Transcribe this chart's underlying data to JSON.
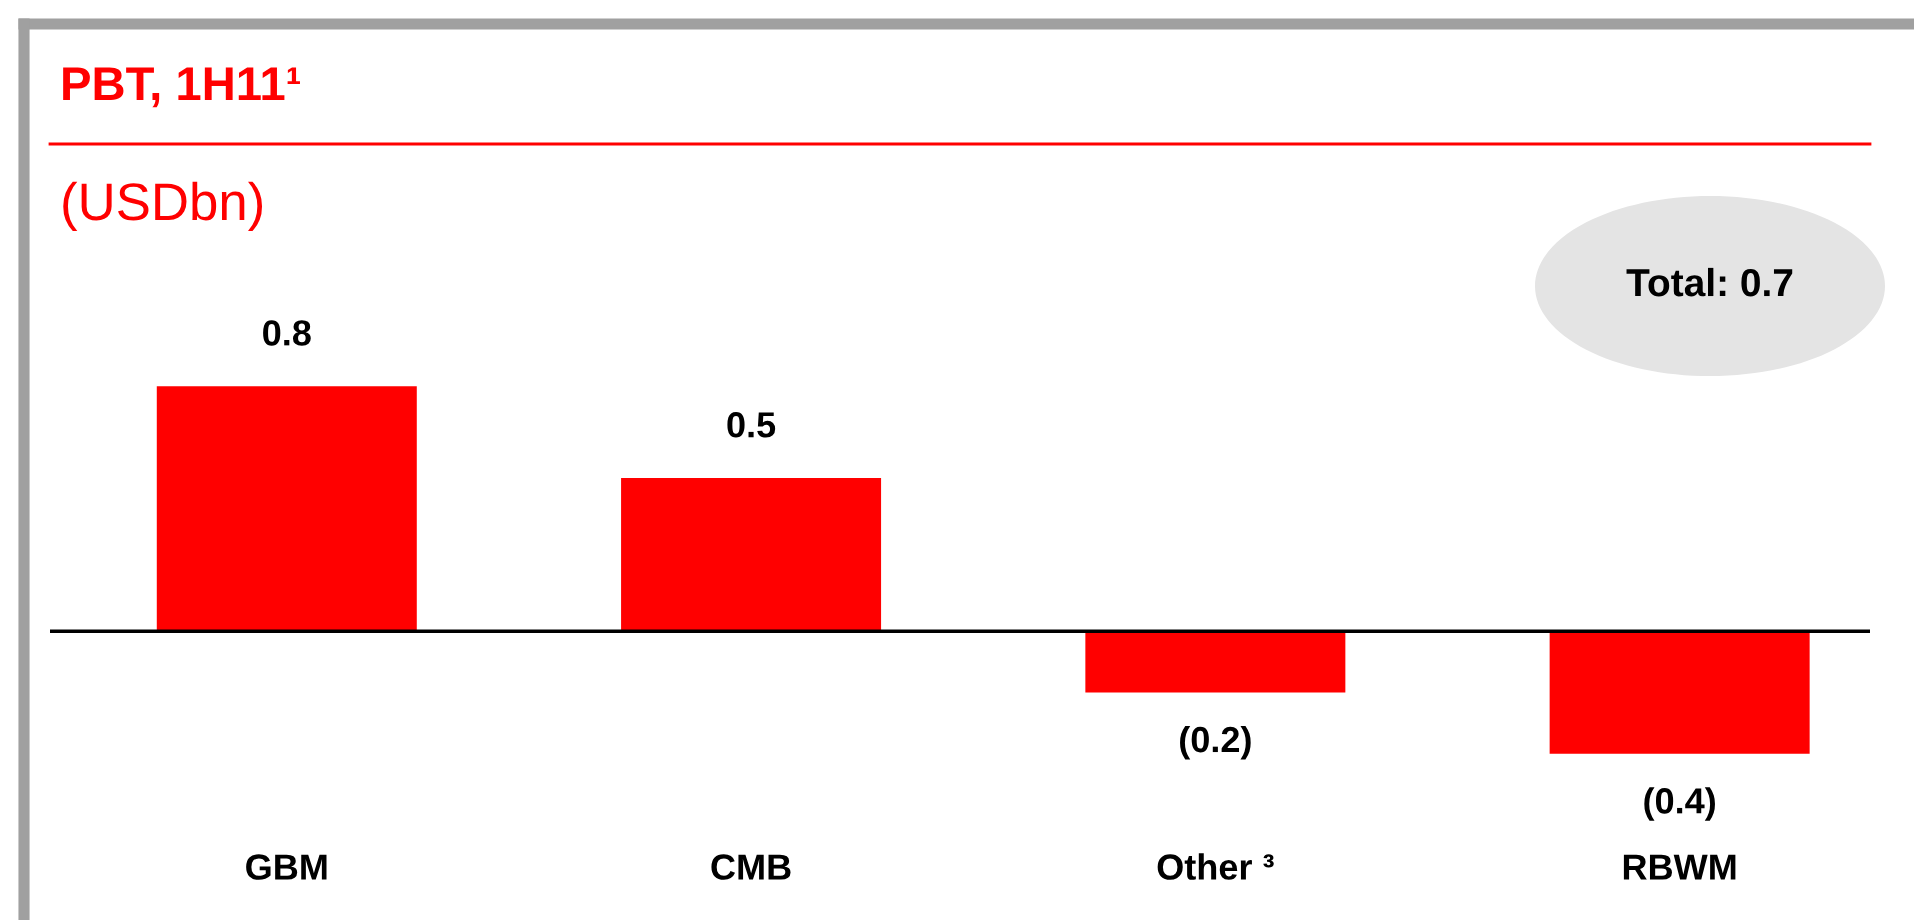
{
  "chart_data": {
    "type": "bar",
    "title": "PBT, 1H11¹",
    "subtitle": "(USDbn)",
    "categories": [
      "GBM",
      "CMB",
      "Other ³",
      "RBWM"
    ],
    "values": [
      0.8,
      0.5,
      -0.2,
      -0.4
    ],
    "color": "#ff0000",
    "value_labels": [
      "0.8",
      "0.5",
      "(0.2)",
      "(0.4)"
    ],
    "annotations": [
      "Total: 0.7"
    ],
    "grid": false,
    "legend": false
  }
}
